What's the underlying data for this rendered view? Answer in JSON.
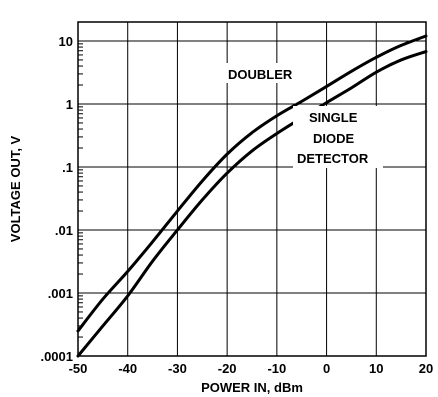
{
  "chart_data": {
    "type": "line",
    "title": "",
    "xlabel": "POWER IN, dBm",
    "ylabel": "VOLTAGE OUT, V",
    "x_scale": "linear",
    "y_scale": "log",
    "xlim": [
      -50,
      20
    ],
    "ylim": [
      0.0001,
      20
    ],
    "x_ticks": [
      -50,
      -40,
      -30,
      -20,
      -10,
      0,
      10,
      20
    ],
    "x_tick_labels": [
      "-50",
      "-40",
      "-30",
      "-20",
      "-10",
      "0",
      "10",
      "20"
    ],
    "y_ticks": [
      0.0001,
      0.001,
      0.01,
      0.1,
      1,
      10
    ],
    "y_tick_labels": [
      ".0001",
      ".001",
      ".01",
      ".1",
      "1",
      "10"
    ],
    "grid": true,
    "series": [
      {
        "name": "DOUBLER",
        "x": [
          -50,
          -45,
          -40,
          -35,
          -30,
          -25,
          -20,
          -15,
          -10,
          -5,
          0,
          5,
          10,
          15,
          20
        ],
        "y": [
          0.00025,
          0.0008,
          0.0022,
          0.0065,
          0.02,
          0.06,
          0.16,
          0.35,
          0.65,
          1.1,
          1.9,
          3.3,
          5.5,
          8.5,
          12
        ]
      },
      {
        "name": "SINGLE DIODE DETECTOR",
        "x": [
          -50,
          -45,
          -40,
          -35,
          -30,
          -25,
          -20,
          -15,
          -10,
          -5,
          0,
          5,
          10,
          15,
          20
        ],
        "y": [
          0.0001,
          0.0003,
          0.0009,
          0.0032,
          0.01,
          0.03,
          0.08,
          0.18,
          0.34,
          0.6,
          1.05,
          1.8,
          3.2,
          5.0,
          6.8
        ]
      }
    ],
    "annotations": {
      "doubler": "DOUBLER",
      "single_line1": "SINGLE",
      "single_line2": "DIODE",
      "single_line3": "DETECTOR"
    }
  }
}
